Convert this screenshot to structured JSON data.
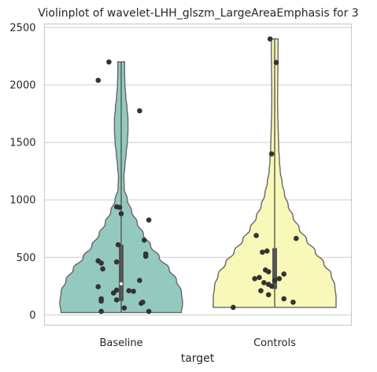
{
  "chart_data": {
    "type": "violin",
    "title": "Violinplot of wavelet-LHH_glszm_LargeAreaEmphasis for 3",
    "xlabel": "target",
    "ylabel": "",
    "ylim": [
      -90,
      2530
    ],
    "yticks": [
      0,
      500,
      1000,
      1500,
      2000,
      2500
    ],
    "categories": [
      "Baseline",
      "Controls"
    ],
    "colors": [
      "#93c9be",
      "#f8f8b8"
    ],
    "grid": true,
    "series": [
      {
        "category": "Baseline",
        "color": "#93c9be",
        "min": 20,
        "max": 2200,
        "quartiles": [
          120,
          270,
          610
        ],
        "density": [
          [
            20,
            0.98
          ],
          [
            100,
            1.0
          ],
          [
            200,
            0.98
          ],
          [
            300,
            0.9
          ],
          [
            400,
            0.78
          ],
          [
            500,
            0.62
          ],
          [
            600,
            0.48
          ],
          [
            700,
            0.36
          ],
          [
            800,
            0.26
          ],
          [
            900,
            0.17
          ],
          [
            1000,
            0.1
          ],
          [
            1100,
            0.05
          ],
          [
            1200,
            0.045
          ],
          [
            1300,
            0.06
          ],
          [
            1400,
            0.08
          ],
          [
            1500,
            0.1
          ],
          [
            1600,
            0.11
          ],
          [
            1700,
            0.11
          ],
          [
            1800,
            0.095
          ],
          [
            1900,
            0.075
          ],
          [
            2000,
            0.06
          ],
          [
            2100,
            0.055
          ],
          [
            2200,
            0.055
          ]
        ],
        "points": [
          {
            "x": -0.08,
            "y": 2200
          },
          {
            "x": -0.15,
            "y": 2040
          },
          {
            "x": 0.12,
            "y": 1775
          },
          {
            "x": -0.03,
            "y": 940
          },
          {
            "x": -0.01,
            "y": 935
          },
          {
            "x": 0.0,
            "y": 880
          },
          {
            "x": 0.18,
            "y": 825
          },
          {
            "x": 0.15,
            "y": 650
          },
          {
            "x": -0.02,
            "y": 610
          },
          {
            "x": 0.16,
            "y": 530
          },
          {
            "x": 0.16,
            "y": 510
          },
          {
            "x": -0.15,
            "y": 470
          },
          {
            "x": -0.13,
            "y": 450
          },
          {
            "x": -0.03,
            "y": 460
          },
          {
            "x": -0.12,
            "y": 400
          },
          {
            "x": 0.12,
            "y": 300
          },
          {
            "x": -0.15,
            "y": 245
          },
          {
            "x": -0.03,
            "y": 215
          },
          {
            "x": 0.05,
            "y": 210
          },
          {
            "x": 0.08,
            "y": 205
          },
          {
            "x": -0.05,
            "y": 190
          },
          {
            "x": -0.13,
            "y": 140
          },
          {
            "x": -0.13,
            "y": 120
          },
          {
            "x": -0.03,
            "y": 130
          },
          {
            "x": 0.14,
            "y": 110
          },
          {
            "x": 0.13,
            "y": 100
          },
          {
            "x": 0.02,
            "y": 60
          },
          {
            "x": -0.13,
            "y": 30
          },
          {
            "x": 0.18,
            "y": 30
          }
        ]
      },
      {
        "category": "Controls",
        "color": "#f8f8b8",
        "min": 65,
        "max": 2400,
        "quartiles": [
          225,
          300,
          580
        ],
        "density": [
          [
            65,
            1.0
          ],
          [
            150,
            1.0
          ],
          [
            250,
            0.98
          ],
          [
            350,
            0.92
          ],
          [
            450,
            0.8
          ],
          [
            550,
            0.66
          ],
          [
            650,
            0.52
          ],
          [
            750,
            0.4
          ],
          [
            850,
            0.3
          ],
          [
            950,
            0.22
          ],
          [
            1050,
            0.16
          ],
          [
            1150,
            0.12
          ],
          [
            1250,
            0.09
          ],
          [
            1350,
            0.075
          ],
          [
            1450,
            0.065
          ],
          [
            1550,
            0.06
          ],
          [
            1650,
            0.055
          ],
          [
            1750,
            0.05
          ],
          [
            1850,
            0.048
          ],
          [
            1950,
            0.048
          ],
          [
            2050,
            0.05
          ],
          [
            2150,
            0.052
          ],
          [
            2250,
            0.054
          ],
          [
            2350,
            0.055
          ],
          [
            2400,
            0.055
          ]
        ],
        "points": [
          {
            "x": -0.03,
            "y": 2400
          },
          {
            "x": 0.01,
            "y": 2195
          },
          {
            "x": -0.02,
            "y": 1400
          },
          {
            "x": -0.12,
            "y": 690
          },
          {
            "x": 0.14,
            "y": 665
          },
          {
            "x": -0.05,
            "y": 555
          },
          {
            "x": -0.08,
            "y": 545
          },
          {
            "x": -0.06,
            "y": 390
          },
          {
            "x": -0.04,
            "y": 375
          },
          {
            "x": 0.06,
            "y": 355
          },
          {
            "x": -0.1,
            "y": 325
          },
          {
            "x": -0.13,
            "y": 315
          },
          {
            "x": 0.03,
            "y": 315
          },
          {
            "x": 0.0,
            "y": 300
          },
          {
            "x": -0.07,
            "y": 280
          },
          {
            "x": -0.04,
            "y": 265
          },
          {
            "x": -0.02,
            "y": 250
          },
          {
            "x": -0.09,
            "y": 210
          },
          {
            "x": -0.04,
            "y": 175
          },
          {
            "x": 0.06,
            "y": 140
          },
          {
            "x": 0.12,
            "y": 110
          },
          {
            "x": -0.27,
            "y": 65
          }
        ]
      }
    ]
  }
}
